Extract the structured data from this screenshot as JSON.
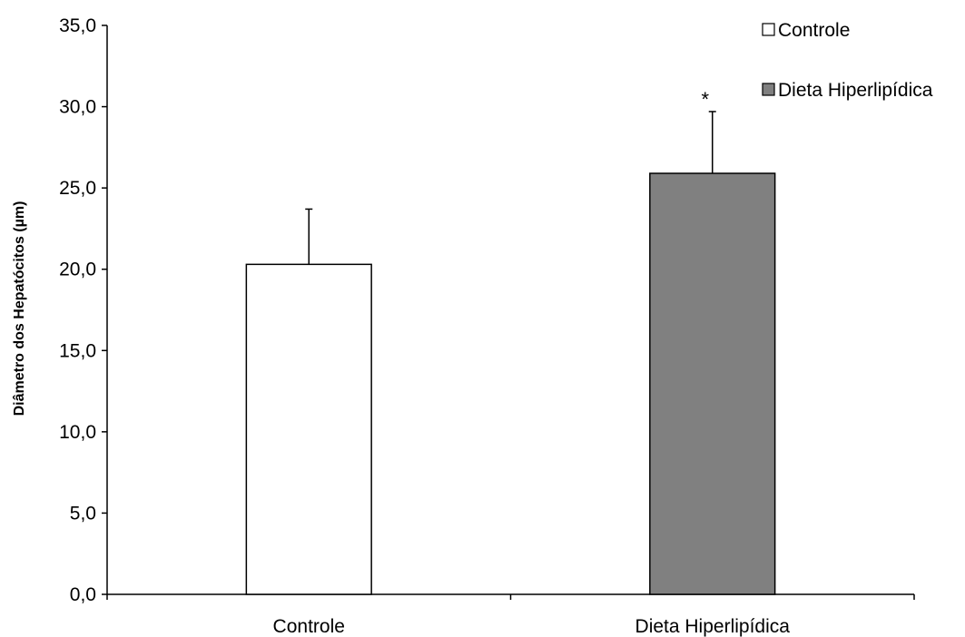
{
  "chart_data": {
    "type": "bar",
    "categories": [
      "Controle",
      "Dieta Hiperlipídica"
    ],
    "values": [
      20.3,
      25.9
    ],
    "error_plus": [
      3.4,
      3.8
    ],
    "significance": [
      "",
      "*"
    ],
    "bar_colors": [
      "#ffffff",
      "#808080"
    ],
    "ylabel": "Diâmetro dos Hepatócitos (µm)",
    "xlabel": "",
    "ylim": [
      0,
      35
    ],
    "y_ticks": [
      "0,0",
      "5,0",
      "10,0",
      "15,0",
      "20,0",
      "25,0",
      "30,0",
      "35,0"
    ],
    "grid": false,
    "legend": {
      "placement": "top-right",
      "entries": [
        {
          "label": "Controle",
          "color": "#ffffff"
        },
        {
          "label": "Dieta Hiperlipídica",
          "color": "#808080"
        }
      ]
    }
  }
}
